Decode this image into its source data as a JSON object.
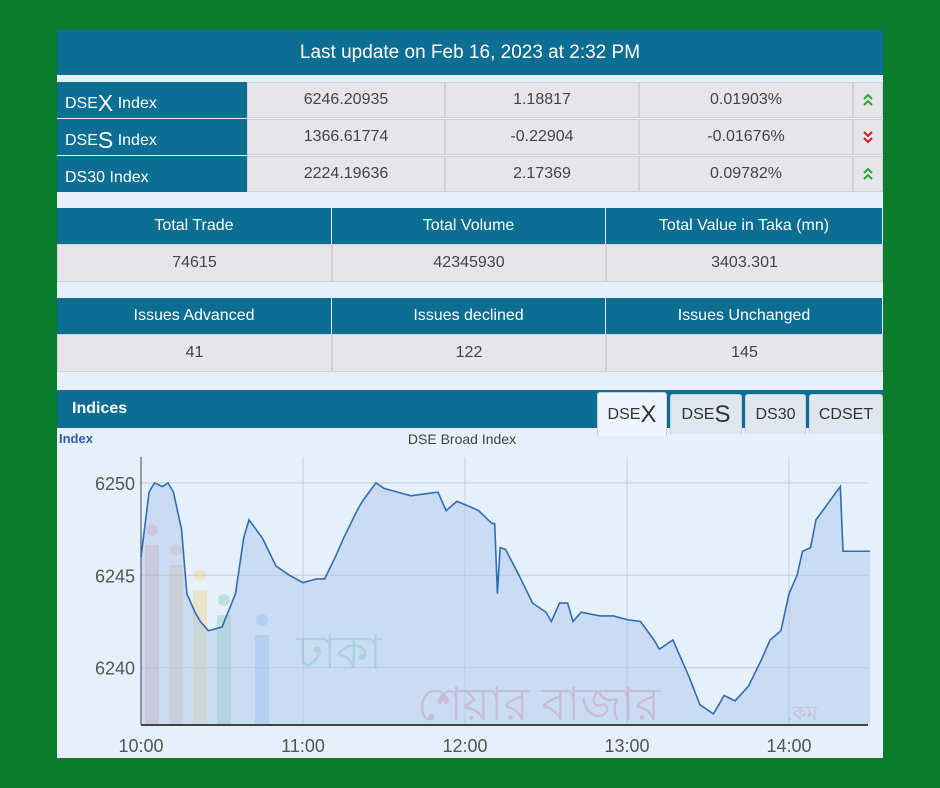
{
  "header": {
    "title": "Last update on Feb 16, 2023 at 2:32 PM"
  },
  "indices": [
    {
      "prefix": "DSE",
      "big": "X",
      "suffix": " Index",
      "value": "6246.20935",
      "change": "1.18817",
      "percent": "0.01903%",
      "direction": "up",
      "icon": "double-chevron-up-icon"
    },
    {
      "prefix": "DSE",
      "big": "S",
      "suffix": " Index",
      "value": "1366.61774",
      "change": "-0.22904",
      "percent": "-0.01676%",
      "direction": "down",
      "icon": "double-chevron-down-icon"
    },
    {
      "prefix": "DS30",
      "big": "",
      "suffix": " Index",
      "value": "2224.19636",
      "change": "2.17369",
      "percent": "0.09782%",
      "direction": "up",
      "icon": "double-chevron-up-icon"
    }
  ],
  "colors": {
    "up": "#22a832",
    "down": "#d11a1a",
    "teal": "#0b6e92",
    "line": "#2f6db5"
  },
  "trade_stats": {
    "headers": [
      "Total Trade",
      "Total Volume",
      "Total Value in Taka (mn)"
    ],
    "values": [
      "74615",
      "42345930",
      "3403.301"
    ]
  },
  "issue_stats": {
    "headers": [
      "Issues Advanced",
      "Issues declined",
      "Issues Unchanged"
    ],
    "values": [
      "41",
      "122",
      "145"
    ]
  },
  "indices_section": {
    "title": "Indices",
    "tabs": [
      {
        "prefix": "DSE",
        "big": "X"
      },
      {
        "prefix": "DSE",
        "big": "S"
      },
      {
        "prefix": "DS30",
        "big": ""
      },
      {
        "prefix": "CDSET",
        "big": ""
      }
    ],
    "active_tab": 0
  },
  "watermark": {
    "line1": "ঢাকা",
    "line2": "শেয়ার বাজার",
    "suffix": ".কম"
  },
  "chart_data": {
    "type": "area",
    "title": "DSE Broad Index",
    "ylabel": "Index",
    "xlabel": "",
    "x_ticks": [
      "10:00",
      "11:00",
      "12:00",
      "13:00",
      "14:00"
    ],
    "y_ticks": [
      6240,
      6245,
      6250
    ],
    "ylim": [
      6236.9,
      6251.4
    ],
    "xlim_minutes_from_10": [
      0,
      270
    ],
    "grid": true,
    "series": [
      {
        "name": "DSEX",
        "points": [
          [
            0,
            6246
          ],
          [
            3,
            6249.5
          ],
          [
            5,
            6250
          ],
          [
            8,
            6249.8
          ],
          [
            10,
            6250
          ],
          [
            12,
            6249.5
          ],
          [
            15,
            6247.5
          ],
          [
            17,
            6244
          ],
          [
            20,
            6243
          ],
          [
            22,
            6242.5
          ],
          [
            25,
            6242
          ],
          [
            30,
            6242.2
          ],
          [
            35,
            6244
          ],
          [
            38,
            6247
          ],
          [
            40,
            6248
          ],
          [
            45,
            6247
          ],
          [
            50,
            6245.5
          ],
          [
            55,
            6245
          ],
          [
            60,
            6244.6
          ],
          [
            65,
            6244.8
          ],
          [
            68,
            6244.8
          ],
          [
            72,
            6246
          ],
          [
            75,
            6247
          ],
          [
            80,
            6248.5
          ],
          [
            82,
            6249
          ],
          [
            87,
            6250
          ],
          [
            90,
            6249.7
          ],
          [
            95,
            6249.5
          ],
          [
            100,
            6249.3
          ],
          [
            105,
            6249.4
          ],
          [
            110,
            6249.5
          ],
          [
            113,
            6248.5
          ],
          [
            117,
            6249
          ],
          [
            122,
            6248.7
          ],
          [
            125,
            6248.5
          ],
          [
            130,
            6247.8
          ],
          [
            131,
            6247.8
          ],
          [
            132,
            6244
          ],
          [
            133,
            6246.5
          ],
          [
            135,
            6246.4
          ],
          [
            140,
            6245
          ],
          [
            145,
            6243.5
          ],
          [
            150,
            6243
          ],
          [
            152,
            6242.5
          ],
          [
            155,
            6243.5
          ],
          [
            158,
            6243.5
          ],
          [
            160,
            6242.5
          ],
          [
            163,
            6243
          ],
          [
            170,
            6242.8
          ],
          [
            175,
            6242.8
          ],
          [
            180,
            6242.6
          ],
          [
            185,
            6242.5
          ],
          [
            190,
            6241.5
          ],
          [
            192,
            6241
          ],
          [
            197,
            6241.5
          ],
          [
            200,
            6240.5
          ],
          [
            203,
            6239.5
          ],
          [
            207,
            6238
          ],
          [
            212,
            6237.5
          ],
          [
            216,
            6238.5
          ],
          [
            220,
            6238.2
          ],
          [
            225,
            6239
          ],
          [
            230,
            6240.5
          ],
          [
            233,
            6241.5
          ],
          [
            237,
            6242
          ],
          [
            240,
            6244
          ],
          [
            243,
            6245
          ],
          [
            245,
            6246.3
          ],
          [
            248,
            6246.5
          ],
          [
            250,
            6248
          ],
          [
            254,
            6248.8
          ],
          [
            259,
            6249.8
          ],
          [
            260,
            6246.3
          ],
          [
            270,
            6246.3
          ]
        ]
      }
    ]
  }
}
